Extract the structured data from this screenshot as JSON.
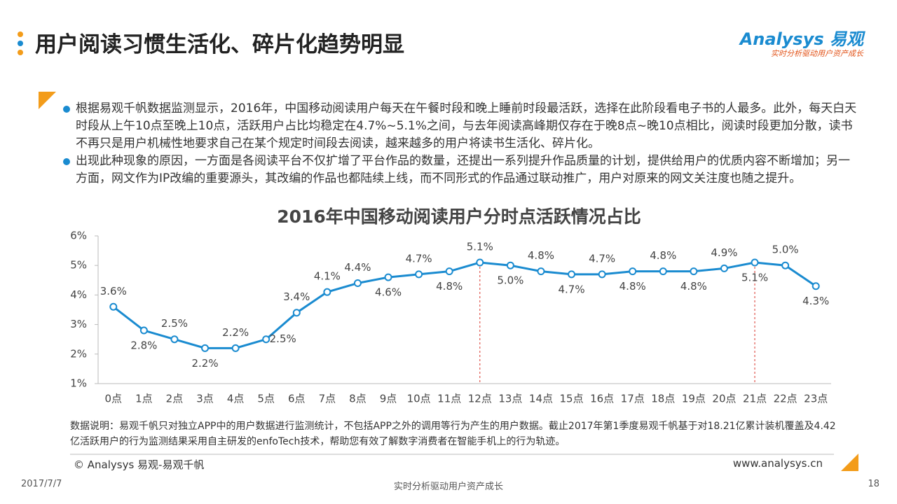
{
  "header": {
    "title": "用户阅读习惯生活化、碎片化趋势明显",
    "logo": "Analysys 易观",
    "tagline": "实时分析驱动用户资产成长"
  },
  "bullets": [
    "根据易观千帆数据监测显示，2016年，中国移动阅读用户每天在午餐时段和晚上睡前时段最活跃，选择在此阶段看电子书的人最多。此外，每天白天时段从上午10点至晚上10点，活跃用户占比均稳定在4.7%~5.1%之间，与去年阅读高峰期仅存在于晚8点~晚10点相比，阅读时段更加分散，读书不再只是用户机械性地要求自己在某个规定时间段去阅读，越来越多的用户将读书生活化、碎片化。",
    "出现此种现象的原因，一方面是各阅读平台不仅扩增了平台作品的数量，还提出一系列提升作品质量的计划，提供给用户的优质内容不断增加；另一方面，网文作为IP改编的重要源头，其改编的作品也都陆续上线，而不同形式的作品通过联动推广，用户对原来的网文关注度也随之提升。"
  ],
  "chart_data": {
    "type": "line",
    "title": "2016年中国移动阅读用户分时点活跃情况占比",
    "categories": [
      "0点",
      "1点",
      "2点",
      "3点",
      "4点",
      "5点",
      "6点",
      "7点",
      "8点",
      "9点",
      "10点",
      "11点",
      "12点",
      "13点",
      "14点",
      "15点",
      "16点",
      "17点",
      "18点",
      "19点",
      "20点",
      "21点",
      "22点",
      "23点"
    ],
    "values": [
      3.6,
      2.8,
      2.5,
      2.2,
      2.2,
      2.5,
      3.4,
      4.1,
      4.4,
      4.6,
      4.7,
      4.8,
      5.1,
      5.0,
      4.8,
      4.7,
      4.7,
      4.8,
      4.8,
      4.8,
      4.9,
      5.1,
      5.0,
      4.3
    ],
    "value_labels": [
      "3.6%",
      "2.8%",
      "2.5%",
      "2.2%",
      "2.2%",
      "2.5%",
      "3.4%",
      "4.1%",
      "4.4%",
      "4.6%",
      "4.7%",
      "4.8%",
      "5.1%",
      "5.0%",
      "4.8%",
      "4.7%",
      "4.7%",
      "4.8%",
      "4.8%",
      "4.8%",
      "4.9%",
      "5.1%",
      "5.0%",
      "4.3%"
    ],
    "color": "#1a8bd0",
    "ylim": [
      1,
      6
    ],
    "yticks": [
      {
        "value": 1,
        "label": "1%"
      },
      {
        "value": 2,
        "label": "2%"
      },
      {
        "value": 3,
        "label": "3%"
      },
      {
        "value": 4,
        "label": "4%"
      },
      {
        "value": 5,
        "label": "5%"
      },
      {
        "value": 6,
        "label": "6%"
      }
    ]
  },
  "footnote": "数据说明：易观千帆只对独立APP中的用户数据进行监测统计，不包括APP之外的调用等行为产生的用户数据。截止2017年第1季度易观千帆基于对18.21亿累计装机覆盖及4.42亿活跃用户的行为监测结果采用自主研发的enfoTech技术，帮助您有效了解数字消费者在智能手机上的行为轨迹。",
  "footer": {
    "copyright": "© Analysys 易观-易观千帆",
    "website": "www.analysys.cn",
    "date": "2017/7/7",
    "center": "实时分析驱动用户资产成长",
    "page": "18"
  }
}
